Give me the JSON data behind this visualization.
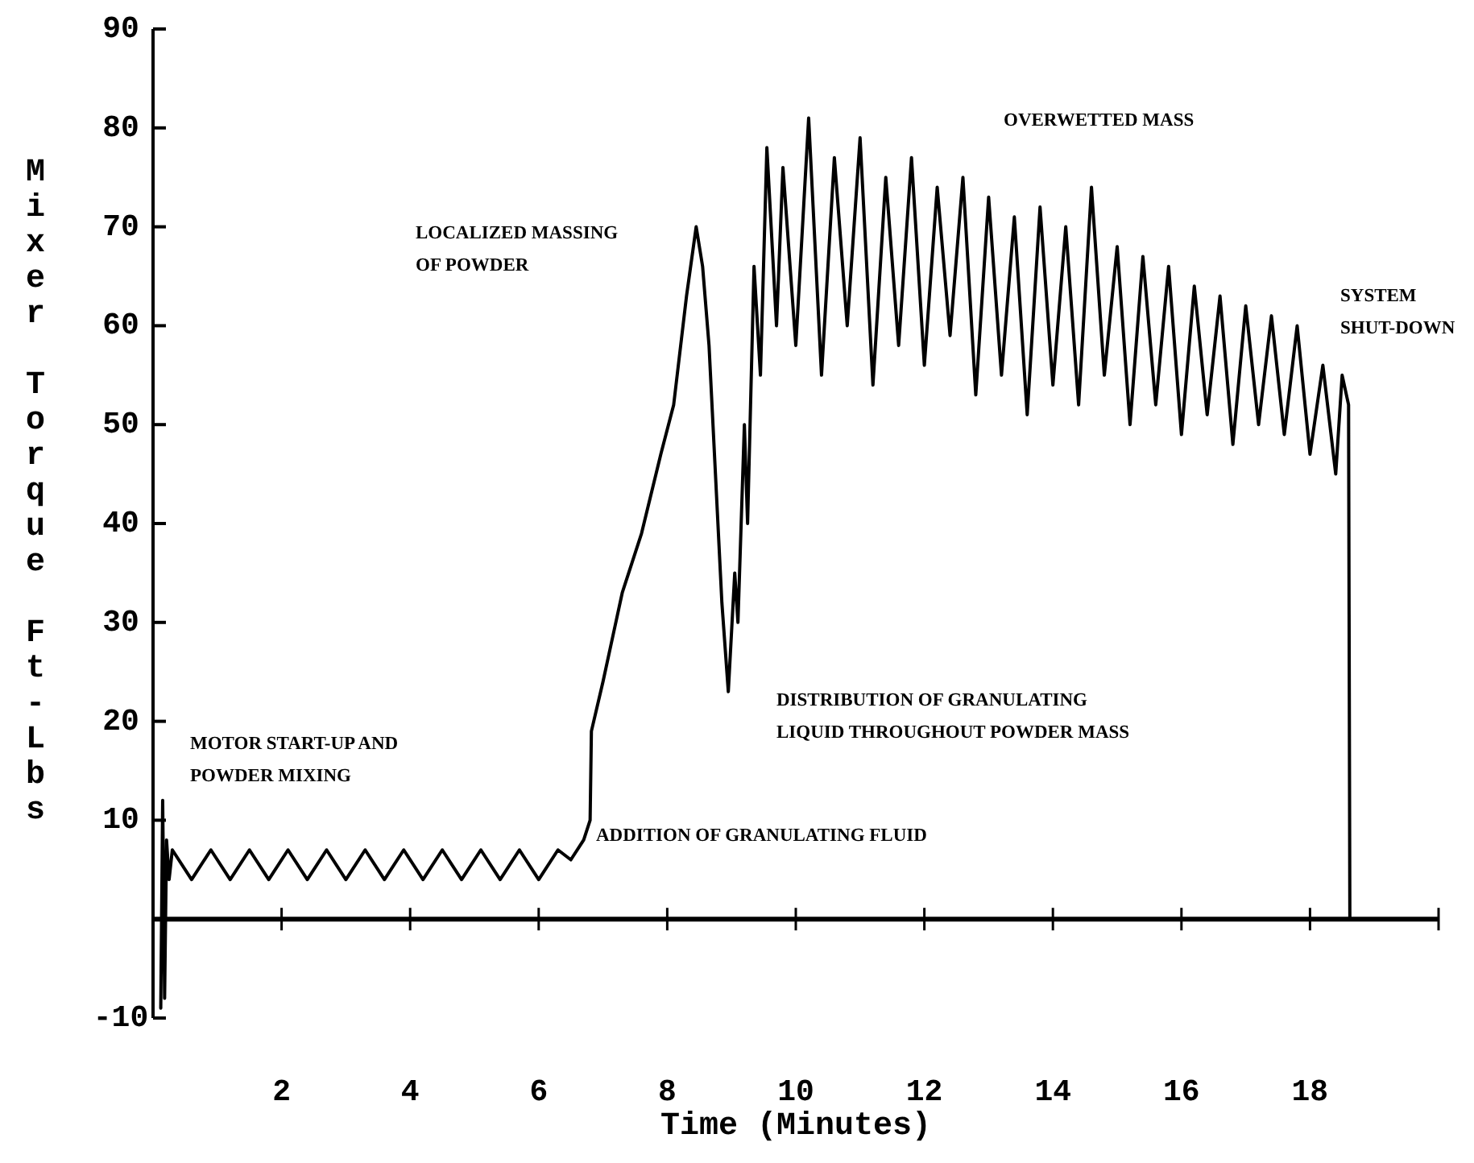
{
  "chart_data": {
    "type": "line",
    "xlabel": "Time (Minutes)",
    "ylabel": "Mixer Torque Ft-Lbs",
    "xlim": [
      0,
      20
    ],
    "xticks": [
      2,
      4,
      6,
      8,
      10,
      12,
      14,
      16,
      18,
      {
        "value": 20,
        "label": null
      }
    ],
    "ylim": [
      -10,
      90
    ],
    "yticks": [
      -10,
      {
        "value": 0,
        "label": null
      },
      10,
      20,
      30,
      40,
      50,
      60,
      70,
      80,
      90
    ],
    "series": [
      {
        "color": "#000000",
        "x": [
          0.12,
          0.15,
          0.18,
          0.21,
          0.25,
          0.3,
          0.6,
          0.9,
          1.2,
          1.5,
          1.8,
          2.1,
          2.4,
          2.7,
          3.0,
          3.3,
          3.6,
          3.9,
          4.2,
          4.5,
          4.8,
          5.1,
          5.4,
          5.7,
          6.0,
          6.3,
          6.5,
          6.7,
          6.8,
          6.82,
          7.0,
          7.3,
          7.6,
          7.9,
          8.1,
          8.3,
          8.45,
          8.55,
          8.65,
          8.75,
          8.85,
          8.95,
          9.05,
          9.1,
          9.2,
          9.25,
          9.35,
          9.45,
          9.55,
          9.7,
          9.8,
          10.0,
          10.2,
          10.4,
          10.6,
          10.8,
          11.0,
          11.2,
          11.4,
          11.6,
          11.8,
          12.0,
          12.2,
          12.4,
          12.6,
          12.8,
          13.0,
          13.2,
          13.4,
          13.6,
          13.8,
          14.0,
          14.2,
          14.4,
          14.6,
          14.8,
          15.0,
          15.2,
          15.4,
          15.6,
          15.8,
          16.0,
          16.2,
          16.4,
          16.6,
          16.8,
          17.0,
          17.2,
          17.4,
          17.6,
          17.8,
          18.0,
          18.2,
          18.4,
          18.5,
          18.6,
          18.62
        ],
        "values": [
          -9,
          12,
          -8,
          8,
          4,
          7,
          4,
          7,
          4,
          7,
          4,
          7,
          4,
          7,
          4,
          7,
          4,
          7,
          4,
          7,
          4,
          7,
          4,
          7,
          4,
          7,
          6,
          8,
          10,
          19,
          24,
          33,
          39,
          47,
          52,
          63,
          70,
          66,
          58,
          45,
          32,
          23,
          35,
          30,
          50,
          40,
          66,
          55,
          78,
          60,
          76,
          58,
          81,
          55,
          77,
          60,
          79,
          54,
          75,
          58,
          77,
          56,
          74,
          59,
          75,
          53,
          73,
          55,
          71,
          51,
          72,
          54,
          70,
          52,
          74,
          55,
          68,
          50,
          67,
          52,
          66,
          49,
          64,
          51,
          63,
          48,
          62,
          50,
          61,
          49,
          60,
          47,
          56,
          45,
          55,
          52,
          0
        ]
      }
    ],
    "annotations": [
      "MOTOR START-UP AND\nPOWDER MIXING",
      "LOCALIZED MASSING\nOF POWDER",
      "OVERWETTED MASS",
      "SYSTEM\nSHUT-DOWN",
      "DISTRIBUTION OF GRANULATING\nLIQUID THROUGHOUT POWDER MASS",
      "ADDITION OF GRANULATING FLUID"
    ]
  }
}
